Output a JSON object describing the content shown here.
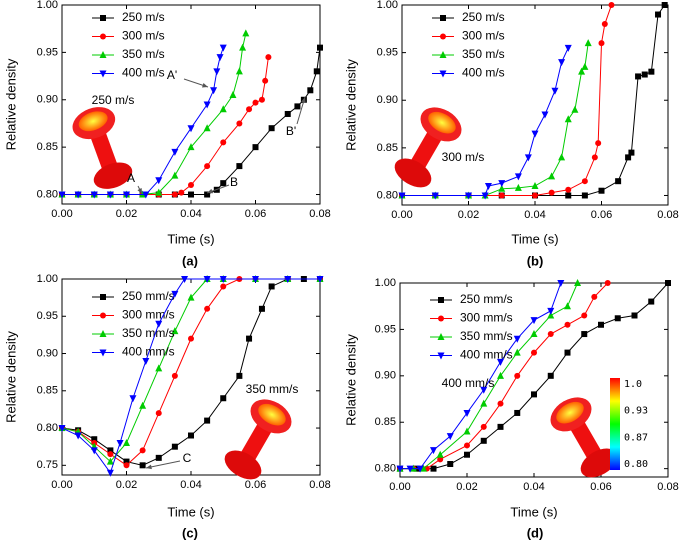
{
  "chart_data": [
    {
      "type": "line",
      "panel_label": "(a)",
      "xlabel": "Time (s)",
      "ylabel": "Relative density",
      "xlim": [
        0,
        0.08
      ],
      "xticks": [
        {
          "value": 0,
          "label": "0.00"
        },
        0.02,
        0.04,
        0.06,
        0.08
      ],
      "ylim": [
        0.79,
        1.0
      ],
      "yticks": [
        {
          "value": 0.8,
          "label": "0.80"
        },
        0.85,
        {
          "value": 0.9,
          "label": "0.90"
        },
        0.95,
        {
          "value": 1.0,
          "label": "1.00"
        }
      ],
      "grid": false,
      "legend": "upper left",
      "annotations": [
        "A",
        "B",
        "A'",
        "B'",
        "250 m/s"
      ],
      "series": [
        {
          "name": "250 m/s",
          "color": "#000000",
          "marker": "square",
          "x": [
            0,
            0.005,
            0.01,
            0.015,
            0.02,
            0.025,
            0.03,
            0.035,
            0.04,
            0.045,
            0.048,
            0.05,
            0.055,
            0.06,
            0.065,
            0.07,
            0.073,
            0.075,
            0.077,
            0.079,
            0.08
          ],
          "values": [
            0.8,
            0.8,
            0.8,
            0.8,
            0.8,
            0.8,
            0.8,
            0.8,
            0.8,
            0.8,
            0.805,
            0.812,
            0.83,
            0.85,
            0.87,
            0.885,
            0.893,
            0.9,
            0.91,
            0.93,
            0.955
          ]
        },
        {
          "name": "300 m/s",
          "color": "#ff0000",
          "marker": "circle",
          "x": [
            0,
            0.005,
            0.01,
            0.015,
            0.02,
            0.025,
            0.03,
            0.035,
            0.037,
            0.04,
            0.045,
            0.05,
            0.055,
            0.058,
            0.06,
            0.062,
            0.063,
            0.064
          ],
          "values": [
            0.8,
            0.8,
            0.8,
            0.8,
            0.8,
            0.8,
            0.8,
            0.8,
            0.802,
            0.81,
            0.83,
            0.855,
            0.875,
            0.89,
            0.897,
            0.9,
            0.92,
            0.945
          ]
        },
        {
          "name": "350 m/s",
          "color": "#00cc00",
          "marker": "triangle-up",
          "x": [
            0,
            0.005,
            0.01,
            0.015,
            0.02,
            0.025,
            0.03,
            0.035,
            0.04,
            0.045,
            0.05,
            0.053,
            0.055,
            0.056,
            0.057
          ],
          "values": [
            0.8,
            0.8,
            0.8,
            0.8,
            0.8,
            0.8,
            0.802,
            0.82,
            0.85,
            0.87,
            0.89,
            0.905,
            0.93,
            0.955,
            0.97
          ]
        },
        {
          "name": "400 m/s",
          "color": "#0000ff",
          "marker": "triangle-down",
          "x": [
            0,
            0.005,
            0.01,
            0.015,
            0.02,
            0.026,
            0.03,
            0.035,
            0.04,
            0.045,
            0.047,
            0.048,
            0.049,
            0.05
          ],
          "values": [
            0.8,
            0.8,
            0.8,
            0.8,
            0.8,
            0.8,
            0.815,
            0.845,
            0.87,
            0.895,
            0.91,
            0.93,
            0.945,
            0.955
          ]
        }
      ]
    },
    {
      "type": "line",
      "panel_label": "(b)",
      "xlabel": "Time (s)",
      "ylabel": "Relative density",
      "xlim": [
        0,
        0.08
      ],
      "xticks": [
        {
          "value": 0,
          "label": "0.00"
        },
        0.02,
        0.04,
        0.06,
        0.08
      ],
      "ylim": [
        0.79,
        1.0
      ],
      "yticks": [
        {
          "value": 0.8,
          "label": "0.80"
        },
        0.85,
        {
          "value": 0.9,
          "label": "0.90"
        },
        0.95,
        {
          "value": 1.0,
          "label": "1.00"
        }
      ],
      "grid": false,
      "legend": "upper left",
      "annotations": [
        "300 m/s"
      ],
      "series": [
        {
          "name": "250 m/s",
          "color": "#000000",
          "marker": "square",
          "x": [
            0,
            0.01,
            0.02,
            0.03,
            0.04,
            0.05,
            0.055,
            0.06,
            0.065,
            0.068,
            0.069,
            0.071,
            0.073,
            0.075,
            0.077,
            0.079
          ],
          "values": [
            0.8,
            0.8,
            0.8,
            0.8,
            0.8,
            0.8,
            0.8,
            0.805,
            0.815,
            0.84,
            0.845,
            0.925,
            0.927,
            0.93,
            0.99,
            1.0
          ]
        },
        {
          "name": "300 m/s",
          "color": "#ff0000",
          "marker": "circle",
          "x": [
            0,
            0.01,
            0.02,
            0.03,
            0.04,
            0.045,
            0.05,
            0.055,
            0.058,
            0.059,
            0.06,
            0.061,
            0.063
          ],
          "values": [
            0.8,
            0.8,
            0.8,
            0.8,
            0.8,
            0.803,
            0.806,
            0.815,
            0.84,
            0.855,
            0.96,
            0.98,
            1.0
          ]
        },
        {
          "name": "350 m/s",
          "color": "#00cc00",
          "marker": "triangle-up",
          "x": [
            0,
            0.01,
            0.02,
            0.025,
            0.03,
            0.035,
            0.04,
            0.045,
            0.048,
            0.05,
            0.052,
            0.054,
            0.055,
            0.056
          ],
          "values": [
            0.8,
            0.8,
            0.8,
            0.8,
            0.807,
            0.808,
            0.81,
            0.82,
            0.84,
            0.88,
            0.89,
            0.93,
            0.935,
            0.96
          ]
        },
        {
          "name": "400 m/s",
          "color": "#0000ff",
          "marker": "triangle-down",
          "x": [
            0,
            0.01,
            0.02,
            0.025,
            0.026,
            0.03,
            0.035,
            0.038,
            0.04,
            0.043,
            0.046,
            0.048,
            0.05
          ],
          "values": [
            0.8,
            0.8,
            0.8,
            0.8,
            0.81,
            0.813,
            0.82,
            0.84,
            0.865,
            0.885,
            0.91,
            0.94,
            0.955
          ]
        }
      ]
    },
    {
      "type": "line",
      "panel_label": "(c)",
      "xlabel": "Time (s)",
      "ylabel": "Relative density",
      "xlim": [
        0,
        0.08
      ],
      "xticks": [
        {
          "value": 0,
          "label": "0.00"
        },
        0.02,
        0.04,
        0.06,
        0.08
      ],
      "ylim": [
        0.737,
        1.0
      ],
      "yticks": [
        0.75,
        {
          "value": 0.8,
          "label": "0.80"
        },
        0.85,
        {
          "value": 0.9,
          "label": "0.90"
        },
        0.95,
        {
          "value": 1.0,
          "label": "1.00"
        }
      ],
      "grid": false,
      "legend": "upper left",
      "annotations": [
        "C",
        "350 mm/s"
      ],
      "series": [
        {
          "name": "250 mm/s",
          "color": "#000000",
          "marker": "square",
          "x": [
            0,
            0.005,
            0.01,
            0.015,
            0.02,
            0.025,
            0.03,
            0.035,
            0.04,
            0.045,
            0.05,
            0.055,
            0.058,
            0.062,
            0.065,
            0.07,
            0.075,
            0.08
          ],
          "values": [
            0.8,
            0.797,
            0.785,
            0.77,
            0.755,
            0.75,
            0.76,
            0.775,
            0.79,
            0.81,
            0.84,
            0.87,
            0.92,
            0.96,
            0.99,
            1.0,
            1.0,
            1.0
          ]
        },
        {
          "name": "300 mm/s",
          "color": "#ff0000",
          "marker": "circle",
          "x": [
            0,
            0.005,
            0.01,
            0.015,
            0.02,
            0.025,
            0.03,
            0.035,
            0.04,
            0.045,
            0.05,
            0.055,
            0.06,
            0.07,
            0.08
          ],
          "values": [
            0.8,
            0.795,
            0.78,
            0.765,
            0.75,
            0.77,
            0.82,
            0.87,
            0.92,
            0.96,
            0.99,
            1.0,
            1.0,
            1.0,
            1.0
          ]
        },
        {
          "name": "350 mm/s",
          "color": "#00cc00",
          "marker": "triangle-up",
          "x": [
            0,
            0.005,
            0.01,
            0.015,
            0.02,
            0.025,
            0.03,
            0.035,
            0.04,
            0.045,
            0.05,
            0.06,
            0.07,
            0.08
          ],
          "values": [
            0.8,
            0.795,
            0.775,
            0.755,
            0.78,
            0.83,
            0.88,
            0.93,
            0.975,
            1.0,
            1.0,
            1.0,
            1.0,
            1.0
          ]
        },
        {
          "name": "400 mm/s",
          "color": "#0000ff",
          "marker": "triangle-down",
          "x": [
            0,
            0.005,
            0.01,
            0.015,
            0.018,
            0.022,
            0.026,
            0.03,
            0.035,
            0.038,
            0.045,
            0.05,
            0.06,
            0.07,
            0.08
          ],
          "values": [
            0.8,
            0.79,
            0.77,
            0.74,
            0.78,
            0.84,
            0.89,
            0.94,
            0.98,
            1.0,
            1.0,
            1.0,
            1.0,
            1.0,
            1.0
          ]
        }
      ]
    },
    {
      "type": "line",
      "panel_label": "(d)",
      "xlabel": "Time (s)",
      "ylabel": "Relative density",
      "xlim": [
        0,
        0.08
      ],
      "xticks": [
        {
          "value": 0,
          "label": "0.00"
        },
        0.02,
        0.04,
        0.06,
        0.08
      ],
      "ylim": [
        0.791,
        1.0
      ],
      "yticks": [
        {
          "value": 0.8,
          "label": "0.80"
        },
        0.85,
        {
          "value": 0.9,
          "label": "0.90"
        },
        0.95,
        {
          "value": 1.0,
          "label": "1.00"
        }
      ],
      "grid": false,
      "legend": "upper left",
      "annotations": [
        "400 mm/s"
      ],
      "colorbar": [
        "1.0",
        "0.93",
        "0.87",
        "0.80"
      ],
      "series": [
        {
          "name": "250 mm/s",
          "color": "#000000",
          "marker": "square",
          "x": [
            0,
            0.005,
            0.01,
            0.015,
            0.02,
            0.025,
            0.03,
            0.035,
            0.04,
            0.045,
            0.05,
            0.055,
            0.06,
            0.065,
            0.07,
            0.075,
            0.08
          ],
          "values": [
            0.8,
            0.8,
            0.8,
            0.805,
            0.815,
            0.83,
            0.845,
            0.86,
            0.88,
            0.9,
            0.925,
            0.945,
            0.955,
            0.962,
            0.965,
            0.98,
            1.0
          ]
        },
        {
          "name": "300 mm/s",
          "color": "#ff0000",
          "marker": "circle",
          "x": [
            0,
            0.004,
            0.008,
            0.012,
            0.02,
            0.025,
            0.03,
            0.035,
            0.04,
            0.045,
            0.05,
            0.055,
            0.058,
            0.062
          ],
          "values": [
            0.8,
            0.8,
            0.8,
            0.81,
            0.825,
            0.845,
            0.87,
            0.9,
            0.925,
            0.945,
            0.955,
            0.965,
            0.985,
            1.0
          ]
        },
        {
          "name": "350 mm/s",
          "color": "#00cc00",
          "marker": "triangle-up",
          "x": [
            0,
            0.004,
            0.007,
            0.012,
            0.02,
            0.025,
            0.03,
            0.035,
            0.04,
            0.045,
            0.05,
            0.053
          ],
          "values": [
            0.8,
            0.8,
            0.8,
            0.815,
            0.84,
            0.87,
            0.9,
            0.925,
            0.945,
            0.965,
            0.975,
            1.0
          ]
        },
        {
          "name": "400 mm/s",
          "color": "#0000ff",
          "marker": "triangle-down",
          "x": [
            0,
            0.003,
            0.006,
            0.01,
            0.015,
            0.02,
            0.025,
            0.03,
            0.035,
            0.04,
            0.045,
            0.048
          ],
          "values": [
            0.8,
            0.8,
            0.8,
            0.82,
            0.835,
            0.86,
            0.885,
            0.915,
            0.94,
            0.96,
            0.97,
            1.0
          ]
        }
      ]
    }
  ]
}
